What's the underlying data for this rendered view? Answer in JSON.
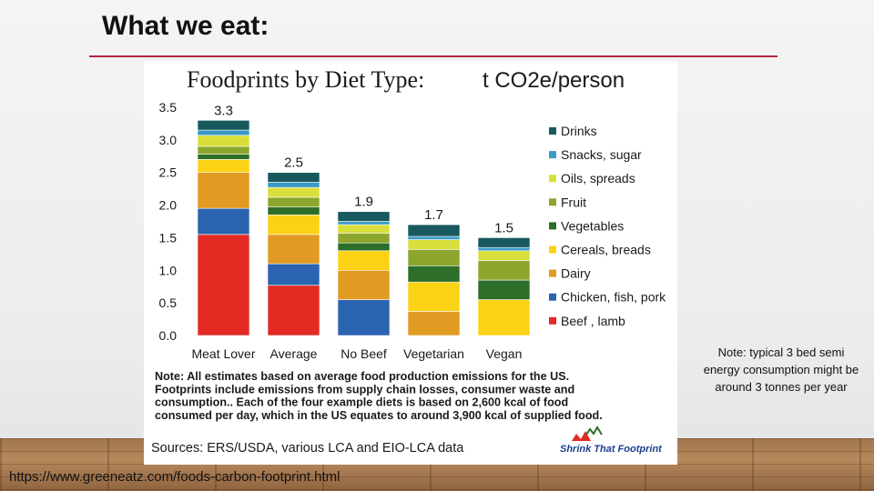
{
  "slide": {
    "title": "What we eat:",
    "side_note": "Note: typical 3 bed semi energy consumption might be around 3 tonnes per year",
    "url": "https://www.greeneatz.com/foods-carbon-footprint.html"
  },
  "figure": {
    "note_lines": [
      "Note: All estimates based on average food production emissions for the US.",
      "Footprints include emissions from supply chain losses, consumer waste and",
      "consumption..  Each of the four example diets is based on 2,600 kcal of food",
      "consumed per day, which in the US equates to around 3,900 kcal of supplied food."
    ],
    "sources": "Sources:  ERS/USDA, various LCA and EIO-LCA data",
    "logo_text": "Shrink That Footprint"
  },
  "colors": {
    "Beef , lamb": "#e32b24",
    "Chicken, fish, pork": "#2a63b0",
    "Dairy": "#e19a22",
    "Cereals, breads": "#fcd214",
    "Vegetables": "#2d6e2a",
    "Fruit": "#8ca52c",
    "Oils, spreads": "#d9df3a",
    "Snacks, sugar": "#3a9ac7",
    "Drinks": "#17595f"
  },
  "chart_data": {
    "type": "bar",
    "stacked": true,
    "title": "Foodprints by Diet Type:",
    "title_unit": "t CO2e/person",
    "xlabel": "",
    "ylabel": "",
    "ylim": [
      0,
      3.5
    ],
    "yticks": [
      "0.0",
      "0.5",
      "1.0",
      "1.5",
      "2.0",
      "2.5",
      "3.0",
      "3.5"
    ],
    "categories": [
      "Meat Lover",
      "Average",
      "No Beef",
      "Vegetarian",
      "Vegan"
    ],
    "totals": [
      "3.3",
      "2.5",
      "1.9",
      "1.7",
      "1.5"
    ],
    "legend_order": [
      "Drinks",
      "Snacks, sugar",
      "Oils, spreads",
      "Fruit",
      "Vegetables",
      "Cereals, breads",
      "Dairy",
      "Chicken, fish, pork",
      "Beef , lamb"
    ],
    "series": [
      {
        "name": "Beef , lamb",
        "values": [
          1.55,
          0.77,
          0,
          0,
          0
        ]
      },
      {
        "name": "Chicken, fish, pork",
        "values": [
          0.4,
          0.33,
          0.55,
          0,
          0
        ]
      },
      {
        "name": "Dairy",
        "values": [
          0.55,
          0.45,
          0.45,
          0.37,
          0
        ]
      },
      {
        "name": "Cereals, breads",
        "values": [
          0.2,
          0.3,
          0.3,
          0.45,
          0.55
        ]
      },
      {
        "name": "Vegetables",
        "values": [
          0.08,
          0.12,
          0.12,
          0.25,
          0.3
        ]
      },
      {
        "name": "Fruit",
        "values": [
          0.12,
          0.15,
          0.15,
          0.25,
          0.3
        ]
      },
      {
        "name": "Oils, spreads",
        "values": [
          0.17,
          0.15,
          0.13,
          0.15,
          0.15
        ]
      },
      {
        "name": "Snacks, sugar",
        "values": [
          0.08,
          0.08,
          0.05,
          0.05,
          0.05
        ]
      },
      {
        "name": "Drinks",
        "values": [
          0.15,
          0.15,
          0.15,
          0.18,
          0.15
        ]
      }
    ]
  }
}
